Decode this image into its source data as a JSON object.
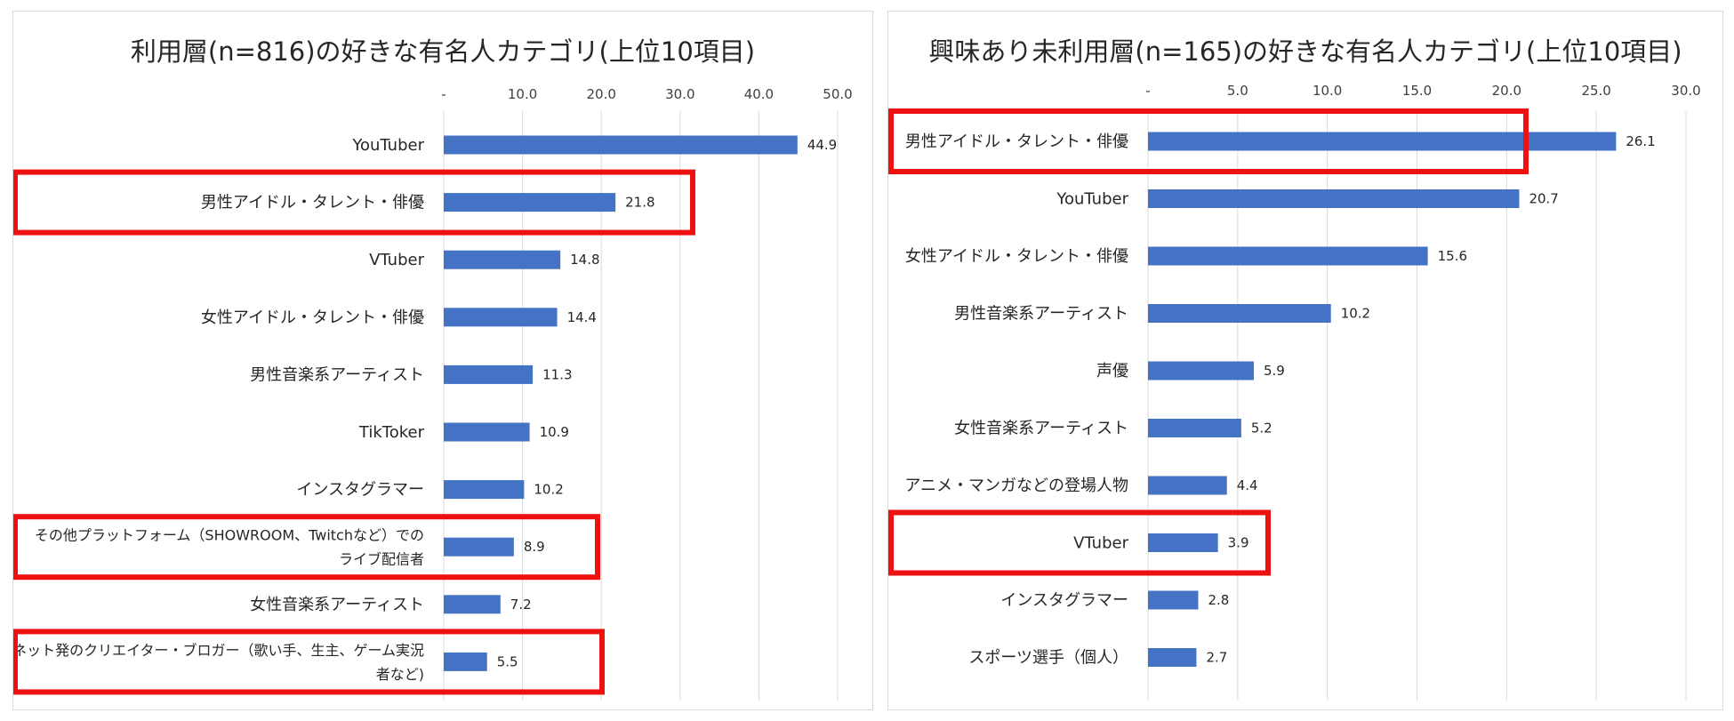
{
  "colors": {
    "bar": "#4472c4",
    "highlight": "#ee1111",
    "grid": "#d9d9d9",
    "text": "#262626"
  },
  "chart_data": [
    {
      "type": "bar",
      "orientation": "horizontal",
      "title": "利用層(n=816)の好きな有名人カテゴリ(上位10項目)",
      "xlim": [
        0,
        50
      ],
      "ticks": [
        "-",
        "10.0",
        "20.0",
        "30.0",
        "40.0",
        "50.0"
      ],
      "categories": [
        [
          "YouTuber"
        ],
        [
          "男性アイドル・タレント・俳優"
        ],
        [
          "VTuber"
        ],
        [
          "女性アイドル・タレント・俳優"
        ],
        [
          "男性音楽系アーティスト"
        ],
        [
          "TikToker"
        ],
        [
          "インスタグラマー"
        ],
        [
          "その他プラットフォーム（SHOWROOM、Twitchなど）での",
          "ライブ配信者"
        ],
        [
          "女性音楽系アーティスト"
        ],
        [
          "ネット発のクリエイター・ブロガー（歌い手、生主、ゲーム実況",
          "者など)"
        ]
      ],
      "values": [
        44.9,
        21.8,
        14.8,
        14.4,
        11.3,
        10.9,
        10.2,
        8.9,
        7.2,
        5.5
      ],
      "value_labels": [
        "44.9",
        "21.8",
        "14.8",
        "14.4",
        "11.3",
        "10.9",
        "10.2",
        "8.9",
        "7.2",
        "5.5"
      ],
      "highlighted": [
        1,
        7,
        9
      ]
    },
    {
      "type": "bar",
      "orientation": "horizontal",
      "title": "興味あり未利用層(n=165)の好きな有名人カテゴリ(上位10項目)",
      "xlim": [
        0,
        30
      ],
      "ticks": [
        "-",
        "5.0",
        "10.0",
        "15.0",
        "20.0",
        "25.0",
        "30.0"
      ],
      "categories": [
        [
          "男性アイドル・タレント・俳優"
        ],
        [
          "YouTuber"
        ],
        [
          "女性アイドル・タレント・俳優"
        ],
        [
          "男性音楽系アーティスト"
        ],
        [
          "声優"
        ],
        [
          "女性音楽系アーティスト"
        ],
        [
          "アニメ・マンガなどの登場人物"
        ],
        [
          "VTuber"
        ],
        [
          "インスタグラマー"
        ],
        [
          "スポーツ選手（個人）"
        ]
      ],
      "values": [
        26.1,
        20.7,
        15.6,
        10.2,
        5.9,
        5.2,
        4.4,
        3.9,
        2.8,
        2.7
      ],
      "value_labels": [
        "26.1",
        "20.7",
        "15.6",
        "10.2",
        "5.9",
        "5.2",
        "4.4",
        "3.9",
        "2.8",
        "2.7"
      ],
      "highlighted": [
        0,
        7
      ]
    }
  ]
}
